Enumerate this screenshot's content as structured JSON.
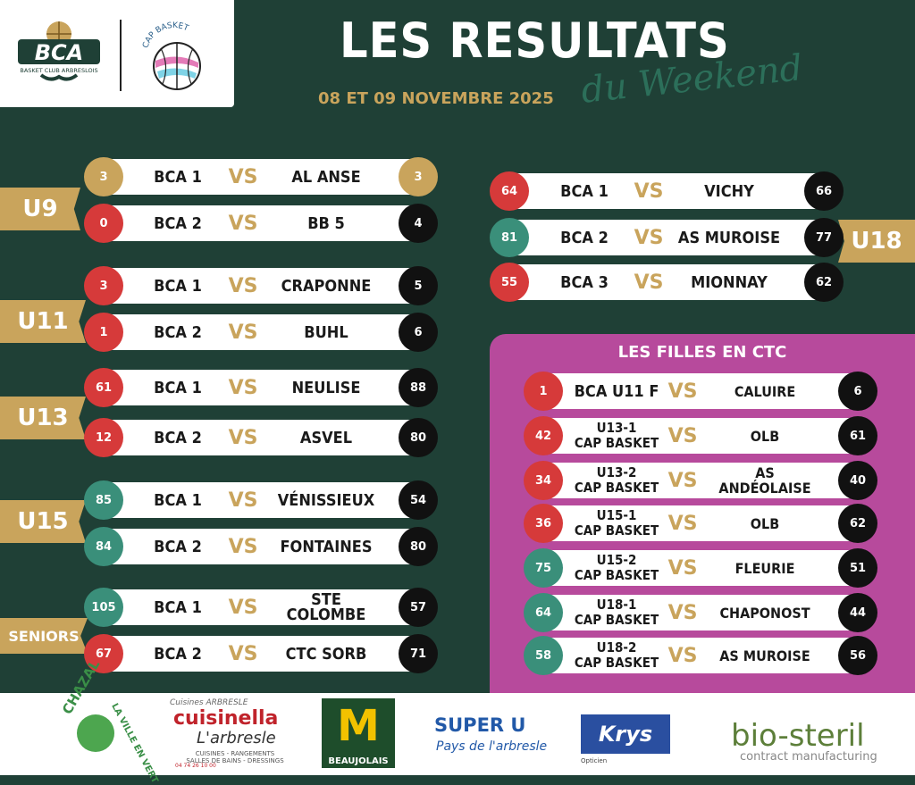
{
  "header": {
    "title": "LES RESULTATS",
    "subtitle": "du Weekend",
    "date": "08 ET 09 NOVEMBRE 2025",
    "bca_logo_text": "BCA",
    "bca_logo_sub": "BASKET CLUB ARBRESLOIS",
    "cap_logo_text": "CAP BASKET"
  },
  "categories": {
    "u9": "U9",
    "u11": "U11",
    "u13": "U13",
    "u15": "U15",
    "seniors": "SENIORS",
    "u18": "U18"
  },
  "vs_label": "VS",
  "left_matches": [
    {
      "score_home": "3",
      "home": "BCA 1",
      "away": "AL ANSE",
      "score_away": "3",
      "home_color": "gold",
      "away_color": "gold"
    },
    {
      "score_home": "0",
      "home": "BCA 2",
      "away": "BB 5",
      "score_away": "4",
      "home_color": "red",
      "away_color": "black"
    },
    {
      "score_home": "3",
      "home": "BCA 1",
      "away": "CRAPONNE",
      "score_away": "5",
      "home_color": "red",
      "away_color": "black"
    },
    {
      "score_home": "1",
      "home": "BCA 2",
      "away": "BUHL",
      "score_away": "6",
      "home_color": "red",
      "away_color": "black"
    },
    {
      "score_home": "61",
      "home": "BCA 1",
      "away": "NEULISE",
      "score_away": "88",
      "home_color": "red",
      "away_color": "black"
    },
    {
      "score_home": "12",
      "home": "BCA 2",
      "away": "ASVEL",
      "score_away": "80",
      "home_color": "red",
      "away_color": "black"
    },
    {
      "score_home": "85",
      "home": "BCA 1",
      "away": "VÉNISSIEUX",
      "score_away": "54",
      "home_color": "teal",
      "away_color": "black"
    },
    {
      "score_home": "84",
      "home": "BCA 2",
      "away": "FONTAINES",
      "score_away": "80",
      "home_color": "teal",
      "away_color": "black"
    },
    {
      "score_home": "105",
      "home": "BCA 1",
      "away": "STE COLOMBE",
      "score_away": "57",
      "home_color": "teal",
      "away_color": "black"
    },
    {
      "score_home": "67",
      "home": "BCA 2",
      "away": "CTC SORB",
      "score_away": "71",
      "home_color": "red",
      "away_color": "black"
    }
  ],
  "u18_matches": [
    {
      "score_home": "64",
      "home": "BCA 1",
      "away": "VICHY",
      "score_away": "66",
      "home_color": "red",
      "away_color": "black"
    },
    {
      "score_home": "81",
      "home": "BCA 2",
      "away": "AS MUROISE",
      "score_away": "77",
      "home_color": "teal",
      "away_color": "black"
    },
    {
      "score_home": "55",
      "home": "BCA 3",
      "away": "MIONNAY",
      "score_away": "62",
      "home_color": "red",
      "away_color": "black"
    }
  ],
  "filles": {
    "title": "LES FILLES EN CTC",
    "matches": [
      {
        "score_home": "1",
        "home_line1": "BCA U11 F",
        "home_line2": "",
        "away": "CALUIRE",
        "score_away": "6",
        "home_color": "red",
        "away_color": "black"
      },
      {
        "score_home": "42",
        "home_line1": "U13-1",
        "home_line2": "CAP BASKET",
        "away": "OLB",
        "score_away": "61",
        "home_color": "red",
        "away_color": "black"
      },
      {
        "score_home": "34",
        "home_line1": "U13-2",
        "home_line2": "CAP BASKET",
        "away": "AS ANDÉOLAISE",
        "score_away": "40",
        "home_color": "red",
        "away_color": "black"
      },
      {
        "score_home": "36",
        "home_line1": "U15-1",
        "home_line2": "CAP BASKET",
        "away": "OLB",
        "score_away": "62",
        "home_color": "red",
        "away_color": "black"
      },
      {
        "score_home": "75",
        "home_line1": "U15-2",
        "home_line2": "CAP BASKET",
        "away": "FLEURIE",
        "score_away": "51",
        "home_color": "teal",
        "away_color": "black"
      },
      {
        "score_home": "64",
        "home_line1": "U18-1",
        "home_line2": "CAP BASKET",
        "away": "CHAPONOST",
        "score_away": "44",
        "home_color": "teal",
        "away_color": "black"
      },
      {
        "score_home": "58",
        "home_line1": "U18-2",
        "home_line2": "CAP BASKET",
        "away": "AS MUROISE",
        "score_away": "56",
        "home_color": "teal",
        "away_color": "black"
      }
    ]
  },
  "sponsors": {
    "chazal": "CHAZAL",
    "chazal_tagline": "LA VILLE EN VERT",
    "cuisinella_small": "Cuisines ARBRESLE",
    "cuisinella": "cuisinella",
    "cuisinella_city": "L'arbresle",
    "cuisinella_sub": "CUISINES - RANGEMENTS SALLES DE BAINS - DRESSINGS",
    "cuisinella_footer": "04 74 26 10 00",
    "mcdonalds": "M",
    "mcdonalds_sub": "BEAUJOLAIS",
    "superu": "SUPER U",
    "superu_sub": "Pays de l'arbresle",
    "krys": "Krys",
    "krys_sub": "Opticien",
    "biosteril": "bio-steril",
    "biosteril_sub": "contract manufacturing"
  },
  "colors": {
    "background": "#1f4036",
    "gold": "#c9a45c",
    "red": "#d63a3a",
    "teal": "#3a8f7a",
    "black": "#111111",
    "pink_panel": "#b74a9c"
  }
}
